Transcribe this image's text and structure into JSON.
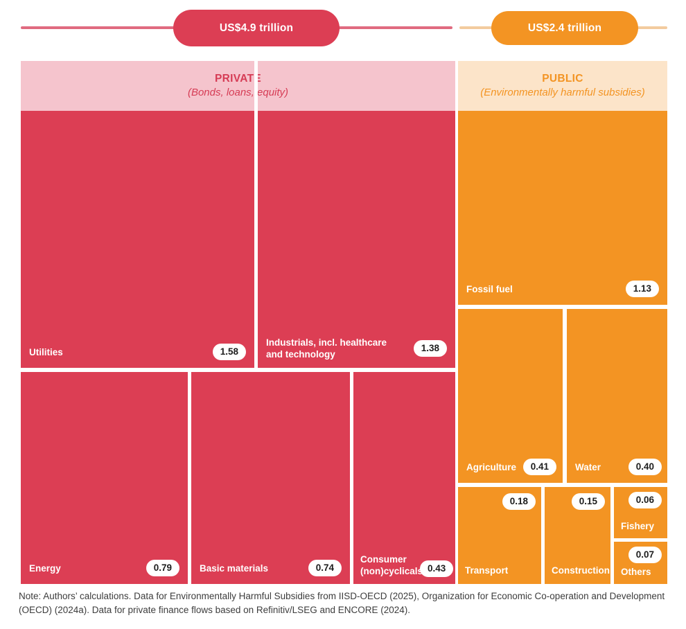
{
  "chart_data": {
    "type": "treemap",
    "unit": "US$ trillion",
    "groups": [
      {
        "name": "PRIVATE",
        "subtitle": "(Bonds, loans, equity)",
        "total_trillion_usd": 4.9,
        "total_label": "US$4.9 trillion",
        "color": "#dc3e54",
        "header_bg": "#f5c4cd",
        "items": [
          {
            "label": "Utilities",
            "value": 1.58,
            "value_label": "1.58"
          },
          {
            "label": "Industrials, incl. healthcare and technology",
            "value": 1.38,
            "value_label": "1.38"
          },
          {
            "label": "Energy",
            "value": 0.79,
            "value_label": "0.79"
          },
          {
            "label": "Basic materials",
            "value": 0.74,
            "value_label": "0.74"
          },
          {
            "label": "Consumer (non)cyclicals",
            "value": 0.43,
            "value_label": "0.43"
          }
        ]
      },
      {
        "name": "PUBLIC",
        "subtitle": "(Environmentally harmful subsidies)",
        "total_trillion_usd": 2.4,
        "total_label": "US$2.4 trillion",
        "color": "#f39423",
        "header_bg": "#fce4c9",
        "items": [
          {
            "label": "Fossil fuel",
            "value": 1.13,
            "value_label": "1.13"
          },
          {
            "label": "Agriculture",
            "value": 0.41,
            "value_label": "0.41"
          },
          {
            "label": "Water",
            "value": 0.4,
            "value_label": "0.40"
          },
          {
            "label": "Transport",
            "value": 0.18,
            "value_label": "0.18"
          },
          {
            "label": "Construction",
            "value": 0.15,
            "value_label": "0.15"
          },
          {
            "label": "Fishery",
            "value": 0.06,
            "value_label": "0.06"
          },
          {
            "label": "Others",
            "value": 0.07,
            "value_label": "0.07"
          }
        ]
      }
    ]
  },
  "note": "Note: Authors’ calculations. Data for Environmentally Harmful Subsidies from IISD-OECD (2025), Organization for Economic Co-operation and Development (OECD) (2024a). Data for private finance flows based on Refinitiv/LSEG and ENCORE (2024)."
}
